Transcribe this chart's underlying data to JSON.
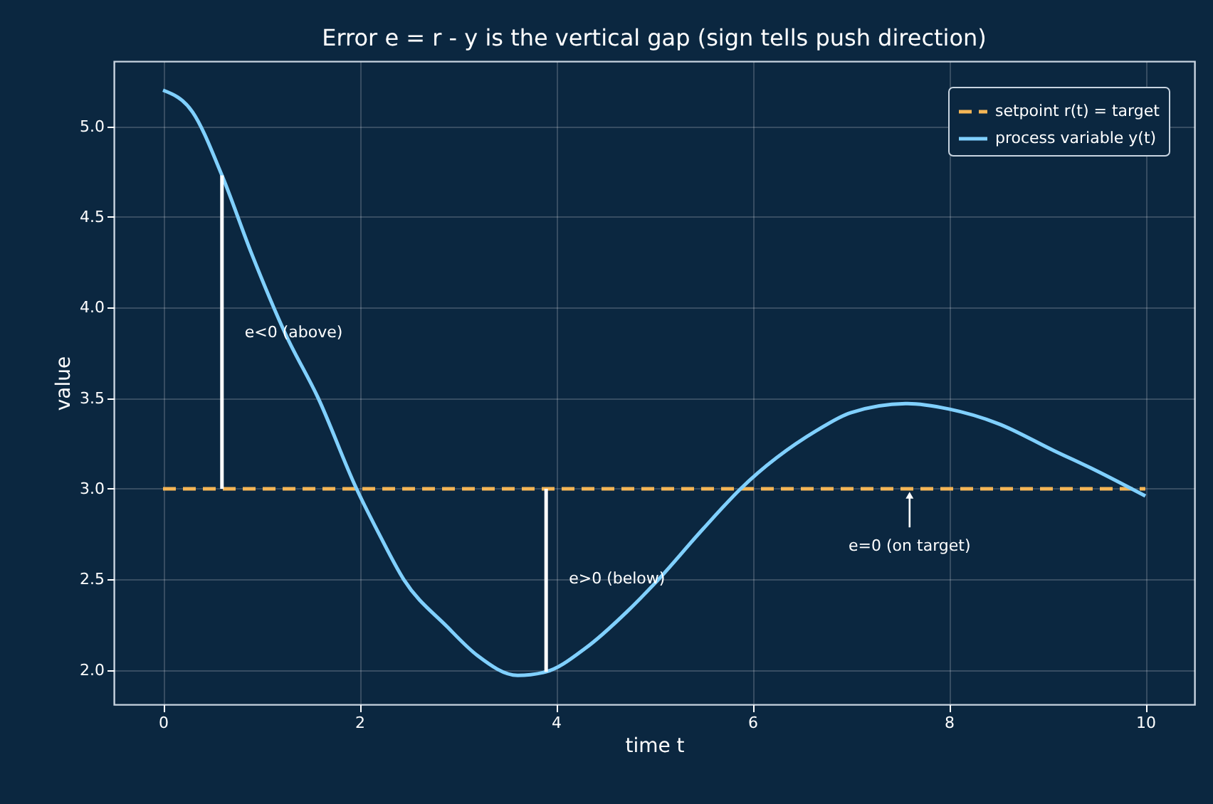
{
  "chart_data": {
    "type": "line",
    "title": "Error e = r - y is the vertical gap (sign tells push direction)",
    "xlabel": "time t",
    "ylabel": "value",
    "xlim": [
      -0.5,
      10.5
    ],
    "ylim": [
      1.81,
      5.36
    ],
    "xticks": [
      0,
      2,
      4,
      6,
      8,
      10
    ],
    "yticks": [
      {
        "value": 2,
        "label": "2.0"
      },
      2.5,
      {
        "value": 3,
        "label": "3.0"
      },
      3.5,
      {
        "value": 4,
        "label": "4.0"
      },
      4.5,
      {
        "value": 5,
        "label": "5.0"
      }
    ],
    "grid": true,
    "legend": "top right",
    "series": [
      {
        "name": "setpoint r(t) = target",
        "color": "#f5b656",
        "line_style": "dashed",
        "x": [
          0,
          10
        ],
        "values": [
          3.0,
          3.0
        ]
      },
      {
        "name": "process variable y(t)",
        "color": "#80d0ff",
        "line_style": "solid",
        "x": [
          0,
          0.3,
          0.6,
          0.9,
          1.25,
          1.58,
          1.97,
          2.2,
          2.45,
          2.89,
          3.2,
          3.61,
          3.9,
          4.3,
          4.72,
          5.01,
          5.5,
          5.88,
          6.65,
          7.0,
          7.58,
          8.0,
          8.5,
          9.07,
          9.5,
          10.0
        ],
        "values": [
          5.2,
          5.08,
          4.73,
          4.3,
          3.85,
          3.5,
          3.0,
          2.75,
          2.5,
          2.24,
          2.08,
          1.97,
          1.99,
          2.12,
          2.32,
          2.48,
          2.78,
          3.0,
          3.32,
          3.42,
          3.47,
          3.44,
          3.36,
          3.21,
          3.1,
          2.96
        ]
      },
      {
        "color": "#ffffff",
        "line_style": "solid",
        "x": [
          0.6,
          0.6
        ],
        "values": [
          3.0,
          4.73
        ]
      },
      {
        "color": "#ffffff",
        "line_style": "solid",
        "x": [
          3.9,
          3.9
        ],
        "values": [
          1.99,
          3.0
        ]
      }
    ],
    "annotations": [
      {
        "text": "e<0 (above)",
        "x": 0.6,
        "y": 3.86
      },
      {
        "text": "e>0 (below)",
        "x": 3.9,
        "y": 2.5
      },
      {
        "text": "e=0 (on target)",
        "x": 7.6,
        "y": 3.0
      }
    ]
  }
}
